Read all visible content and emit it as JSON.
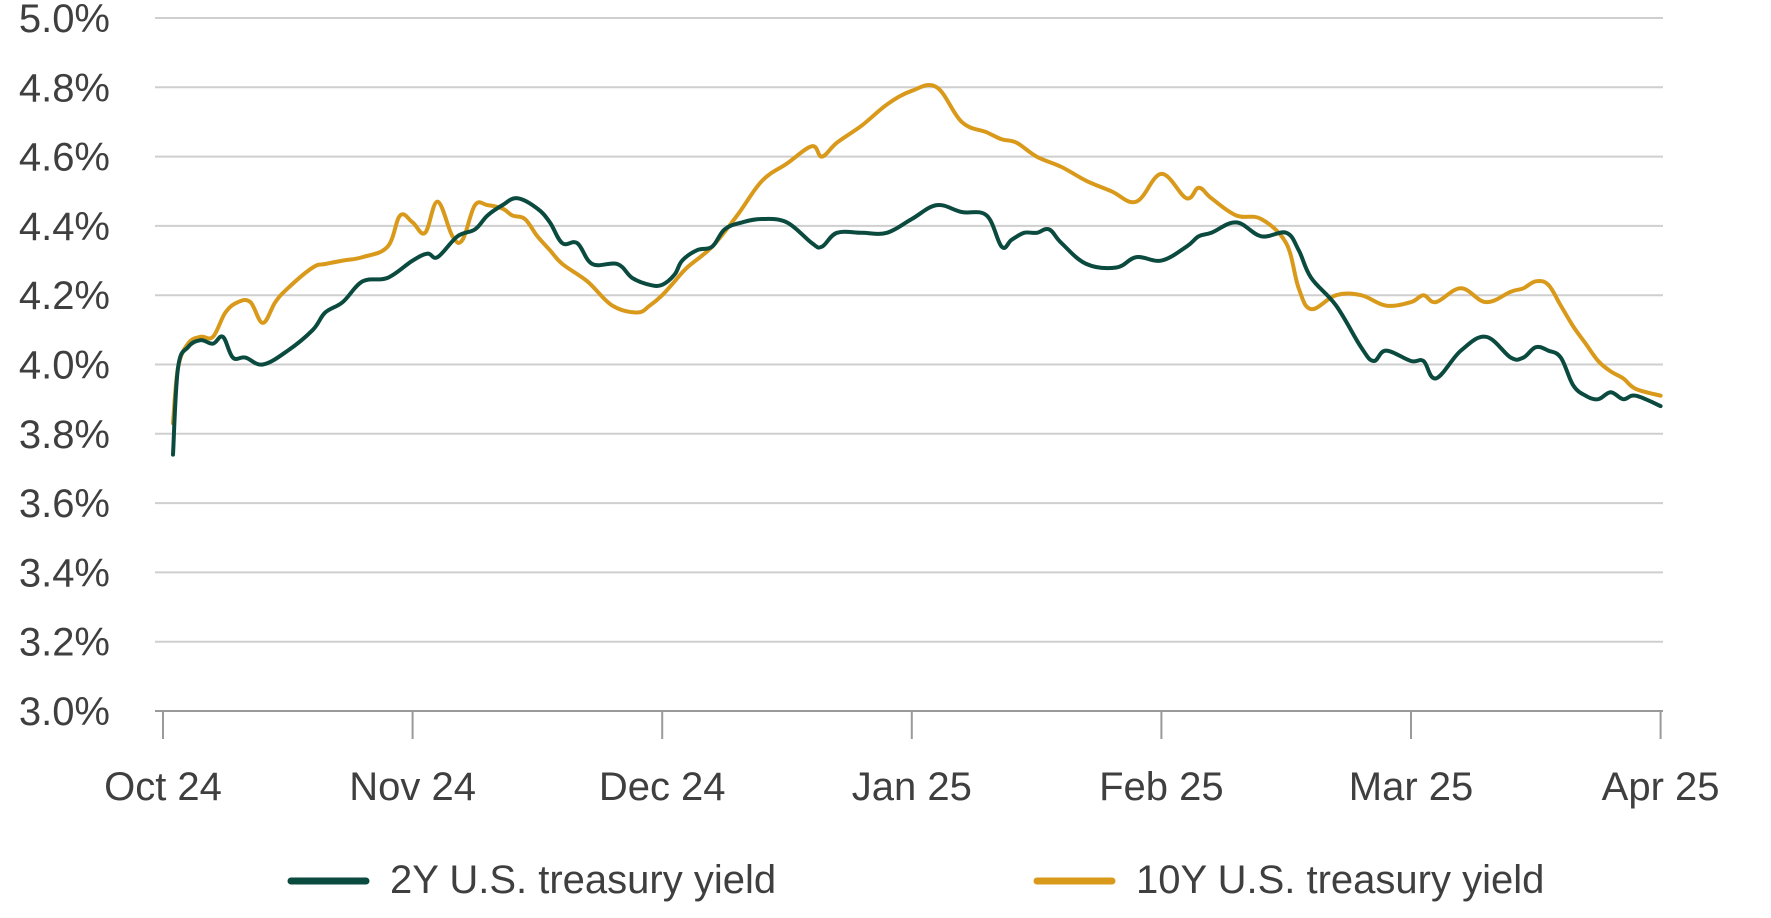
{
  "chart_data": {
    "type": "line",
    "title": "",
    "xlabel": "",
    "ylabel": "",
    "ylim": [
      3.0,
      5.0
    ],
    "y_tick_values": [
      3.0,
      3.2,
      3.4,
      3.6,
      3.8,
      4.0,
      4.2,
      4.4,
      4.6,
      4.8,
      5.0
    ],
    "y_tick_labels": [
      "3.0%",
      "3.2%",
      "3.4%",
      "3.6%",
      "3.8%",
      "4.0%",
      "4.2%",
      "4.4%",
      "4.6%",
      "4.8%",
      "5.0%"
    ],
    "x_ticks": [
      "Oct 24",
      "Nov 24",
      "Dec 24",
      "Jan 25",
      "Feb 25",
      "Mar 25",
      "Apr 25"
    ],
    "x_units": "months since Oct 24",
    "grid": true,
    "legend_position": "bottom",
    "series": [
      {
        "name": "2Y U.S. treasury yield",
        "color": "#0b4a3f",
        "x": [
          0.04,
          0.06,
          0.1,
          0.15,
          0.2,
          0.24,
          0.28,
          0.33,
          0.4,
          0.5,
          0.6,
          0.65,
          0.72,
          0.8,
          0.9,
          1.0,
          1.06,
          1.1,
          1.18,
          1.25,
          1.3,
          1.36,
          1.42,
          1.5,
          1.55,
          1.6,
          1.66,
          1.72,
          1.82,
          1.88,
          1.95,
          2.0,
          2.05,
          2.08,
          2.14,
          2.2,
          2.25,
          2.32,
          2.4,
          2.5,
          2.6,
          2.64,
          2.7,
          2.8,
          2.9,
          3.0,
          3.1,
          3.2,
          3.3,
          3.36,
          3.4,
          3.45,
          3.5,
          3.55,
          3.6,
          3.7,
          3.82,
          3.9,
          4.0,
          4.1,
          4.15,
          4.2,
          4.3,
          4.4,
          4.5,
          4.55,
          4.6,
          4.7,
          4.8,
          4.85,
          4.9,
          5.0,
          5.05,
          5.1,
          5.2,
          5.3,
          5.4,
          5.45,
          5.5,
          5.55,
          5.6,
          5.65,
          5.7,
          5.75,
          5.8,
          5.85,
          5.9,
          6.0
        ],
        "y": [
          3.74,
          3.99,
          4.05,
          4.07,
          4.06,
          4.08,
          4.02,
          4.02,
          4.0,
          4.04,
          4.1,
          4.15,
          4.18,
          4.24,
          4.25,
          4.3,
          4.32,
          4.31,
          4.37,
          4.39,
          4.43,
          4.46,
          4.48,
          4.45,
          4.41,
          4.35,
          4.35,
          4.29,
          4.29,
          4.25,
          4.23,
          4.23,
          4.26,
          4.3,
          4.33,
          4.34,
          4.39,
          4.41,
          4.42,
          4.41,
          4.35,
          4.34,
          4.38,
          4.38,
          4.38,
          4.42,
          4.46,
          4.44,
          4.43,
          4.34,
          4.36,
          4.38,
          4.38,
          4.39,
          4.35,
          4.29,
          4.28,
          4.31,
          4.3,
          4.34,
          4.37,
          4.38,
          4.41,
          4.37,
          4.38,
          4.33,
          4.25,
          4.17,
          4.05,
          4.01,
          4.04,
          4.01,
          4.01,
          3.96,
          4.04,
          4.08,
          4.02,
          4.02,
          4.05,
          4.04,
          4.02,
          3.94,
          3.91,
          3.9,
          3.92,
          3.9,
          3.91,
          3.88
        ]
      },
      {
        "name": "10Y U.S. treasury yield",
        "color": "#d99a1b",
        "x": [
          0.04,
          0.06,
          0.1,
          0.15,
          0.2,
          0.25,
          0.3,
          0.35,
          0.4,
          0.45,
          0.5,
          0.6,
          0.65,
          0.72,
          0.8,
          0.9,
          0.95,
          1.0,
          1.05,
          1.1,
          1.16,
          1.2,
          1.25,
          1.3,
          1.36,
          1.4,
          1.45,
          1.5,
          1.55,
          1.6,
          1.7,
          1.8,
          1.9,
          1.95,
          2.0,
          2.05,
          2.1,
          2.2,
          2.3,
          2.4,
          2.5,
          2.6,
          2.64,
          2.7,
          2.8,
          2.9,
          3.0,
          3.1,
          3.2,
          3.3,
          3.36,
          3.42,
          3.5,
          3.6,
          3.7,
          3.8,
          3.9,
          4.0,
          4.1,
          4.15,
          4.2,
          4.3,
          4.4,
          4.5,
          4.55,
          4.6,
          4.7,
          4.8,
          4.9,
          5.0,
          5.05,
          5.1,
          5.2,
          5.3,
          5.4,
          5.45,
          5.5,
          5.55,
          5.6,
          5.65,
          5.7,
          5.75,
          5.8,
          5.85,
          5.9,
          6.0
        ],
        "y": [
          3.83,
          3.99,
          4.06,
          4.08,
          4.08,
          4.15,
          4.18,
          4.18,
          4.12,
          4.18,
          4.22,
          4.28,
          4.29,
          4.3,
          4.31,
          4.34,
          4.43,
          4.41,
          4.38,
          4.47,
          4.37,
          4.36,
          4.46,
          4.46,
          4.45,
          4.43,
          4.42,
          4.37,
          4.33,
          4.29,
          4.24,
          4.17,
          4.15,
          4.17,
          4.2,
          4.24,
          4.28,
          4.34,
          4.43,
          4.53,
          4.58,
          4.63,
          4.6,
          4.64,
          4.69,
          4.75,
          4.79,
          4.8,
          4.7,
          4.67,
          4.65,
          4.64,
          4.6,
          4.57,
          4.53,
          4.5,
          4.47,
          4.55,
          4.48,
          4.51,
          4.48,
          4.43,
          4.42,
          4.35,
          4.22,
          4.16,
          4.2,
          4.2,
          4.17,
          4.18,
          4.2,
          4.18,
          4.22,
          4.18,
          4.21,
          4.22,
          4.24,
          4.23,
          4.17,
          4.11,
          4.06,
          4.01,
          3.98,
          3.96,
          3.93,
          3.91
        ]
      }
    ]
  }
}
